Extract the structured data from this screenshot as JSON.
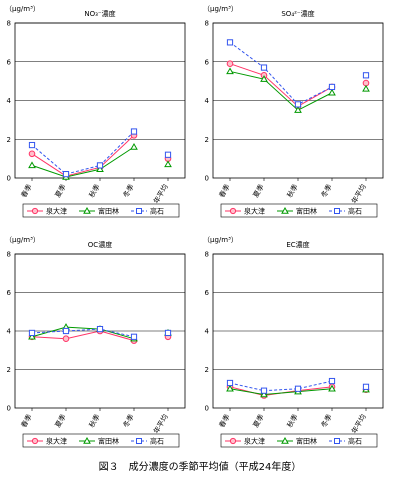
{
  "caption": "図３　成分濃度の季節平均値（平成24年度）",
  "chart_data": [
    {
      "type": "line",
      "title": "NO₃⁻濃度",
      "unit": "（μg/m³）",
      "categories": [
        "春季",
        "夏季",
        "秋季",
        "冬季",
        "年平均"
      ],
      "ylim": [
        0,
        8
      ],
      "yticks": [
        0,
        2,
        4,
        6,
        8
      ],
      "grid": true,
      "legend": "bottom",
      "series": [
        {
          "name": "泉大津",
          "color": "#ff3366",
          "marker": "circle",
          "dash": "",
          "values": [
            1.25,
            0.1,
            0.55,
            2.2,
            1.0
          ]
        },
        {
          "name": "富田林",
          "color": "#009900",
          "marker": "triangle",
          "dash": "",
          "values": [
            0.65,
            0.05,
            0.45,
            1.6,
            0.7
          ]
        },
        {
          "name": "高石",
          "color": "#3355ee",
          "marker": "square",
          "dash": "3,2",
          "values": [
            1.7,
            0.2,
            0.65,
            2.4,
            1.2
          ]
        }
      ]
    },
    {
      "type": "line",
      "title": "SO₄²⁻濃度",
      "unit": "（μg/m³）",
      "categories": [
        "春季",
        "夏季",
        "秋季",
        "冬季",
        "年平均"
      ],
      "ylim": [
        0,
        8
      ],
      "yticks": [
        0,
        2,
        4,
        6,
        8
      ],
      "grid": true,
      "legend": "bottom",
      "series": [
        {
          "name": "泉大津",
          "color": "#ff3366",
          "marker": "circle",
          "dash": "",
          "values": [
            5.9,
            5.3,
            3.7,
            4.7,
            4.9
          ]
        },
        {
          "name": "富田林",
          "color": "#009900",
          "marker": "triangle",
          "dash": "",
          "values": [
            5.5,
            5.1,
            3.5,
            4.4,
            4.6
          ]
        },
        {
          "name": "高石",
          "color": "#3355ee",
          "marker": "square",
          "dash": "3,2",
          "values": [
            7.0,
            5.7,
            3.8,
            4.7,
            5.3
          ]
        }
      ]
    },
    {
      "type": "line",
      "title": "OC濃度",
      "unit": "（μg/m³）",
      "categories": [
        "春季",
        "夏季",
        "秋季",
        "冬季",
        "年平均"
      ],
      "ylim": [
        0,
        8
      ],
      "yticks": [
        0,
        2,
        4,
        6,
        8
      ],
      "grid": true,
      "legend": "bottom",
      "series": [
        {
          "name": "泉大津",
          "color": "#ff3366",
          "marker": "circle",
          "dash": "",
          "values": [
            3.7,
            3.6,
            4.0,
            3.5,
            3.7
          ]
        },
        {
          "name": "富田林",
          "color": "#009900",
          "marker": "triangle",
          "dash": "",
          "values": [
            3.7,
            4.2,
            4.1,
            3.6,
            3.9
          ]
        },
        {
          "name": "高石",
          "color": "#3355ee",
          "marker": "square",
          "dash": "3,2",
          "values": [
            3.9,
            4.0,
            4.1,
            3.7,
            3.9
          ]
        }
      ]
    },
    {
      "type": "line",
      "title": "EC濃度",
      "unit": "（μg/m³）",
      "categories": [
        "春季",
        "夏季",
        "秋季",
        "冬季",
        "年平均"
      ],
      "ylim": [
        0,
        8
      ],
      "yticks": [
        0,
        2,
        4,
        6,
        8
      ],
      "grid": true,
      "legend": "bottom",
      "series": [
        {
          "name": "泉大津",
          "color": "#ff3366",
          "marker": "circle",
          "dash": "",
          "values": [
            1.1,
            0.65,
            0.9,
            1.1,
            0.95
          ]
        },
        {
          "name": "富田林",
          "color": "#009900",
          "marker": "triangle",
          "dash": "",
          "values": [
            1.0,
            0.7,
            0.85,
            1.0,
            0.95
          ]
        },
        {
          "name": "高石",
          "color": "#3355ee",
          "marker": "square",
          "dash": "3,2",
          "values": [
            1.3,
            0.9,
            1.0,
            1.4,
            1.1
          ]
        }
      ]
    }
  ]
}
